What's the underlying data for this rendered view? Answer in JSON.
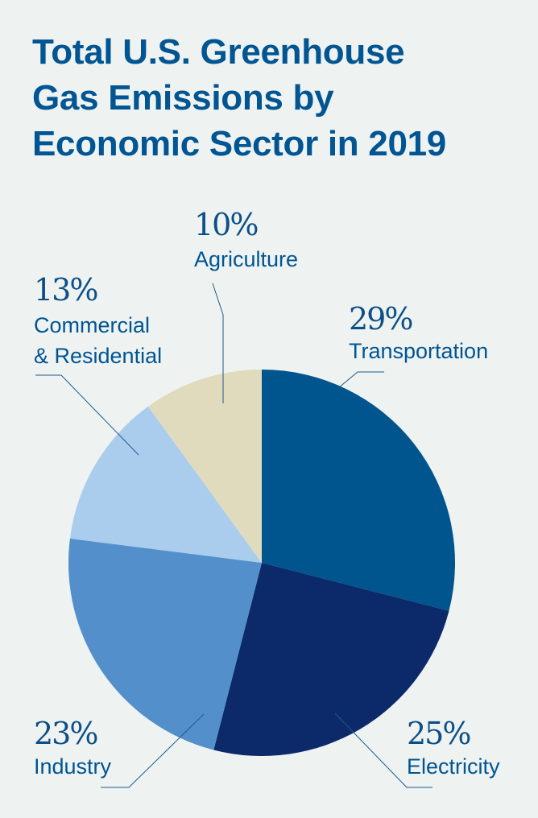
{
  "title_lines": [
    "Total U.S. Greenhouse",
    "Gas Emissions by",
    "Economic Sector in 2019"
  ],
  "chart_data": {
    "type": "pie",
    "title": "Total U.S. Greenhouse Gas Emissions by Economic Sector in 2019",
    "start": "12 o'clock",
    "direction": "clockwise",
    "slices": [
      {
        "label": "Transportation",
        "label_lines": [
          "Transportation"
        ],
        "pct_text": "29%",
        "value": 29,
        "color": "#01558f"
      },
      {
        "label": "Electricity",
        "label_lines": [
          "Electricity"
        ],
        "pct_text": "25%",
        "value": 25,
        "color": "#0c296a"
      },
      {
        "label": "Industry",
        "label_lines": [
          "Industry"
        ],
        "pct_text": "23%",
        "value": 23,
        "color": "#5390cb"
      },
      {
        "label": "Commercial & Residential",
        "label_lines": [
          "Commercial",
          "& Residential"
        ],
        "pct_text": "13%",
        "value": 13,
        "color": "#aacdee"
      },
      {
        "label": "Agriculture",
        "label_lines": [
          "Agriculture"
        ],
        "pct_text": "10%",
        "value": 10,
        "color": "#e1dbbd"
      }
    ]
  }
}
